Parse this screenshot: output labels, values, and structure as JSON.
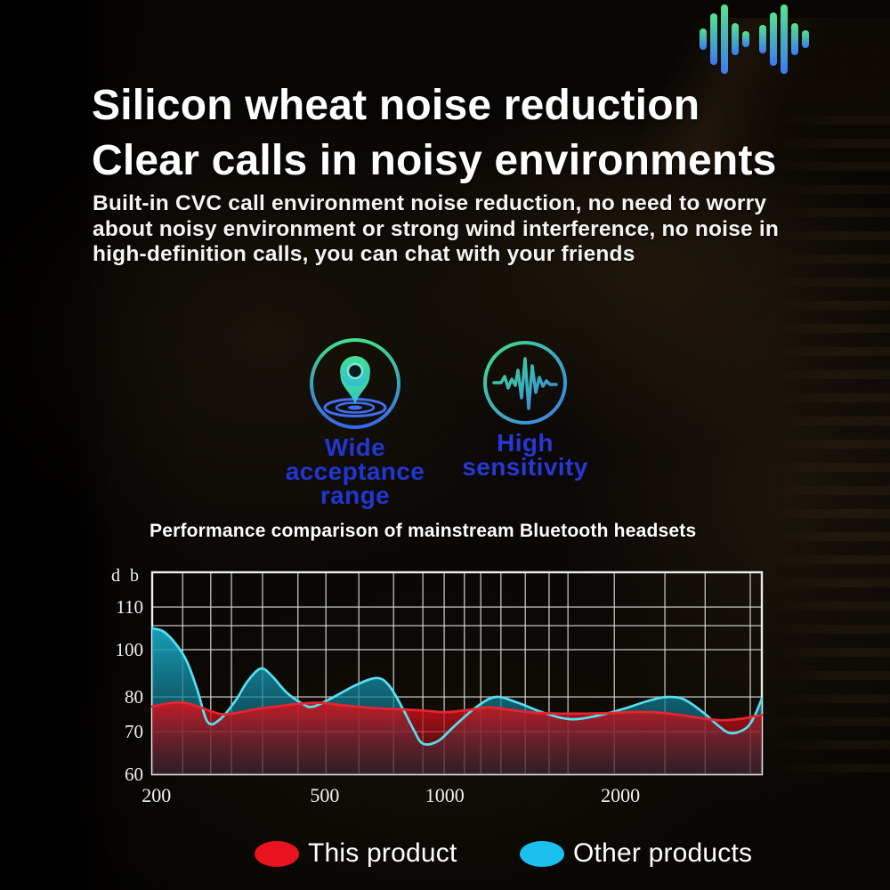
{
  "palette": {
    "heading_color": "#ffffff",
    "feature_label_blue": "#2136d2",
    "icon_gradient": [
      "#3fe08a",
      "#3a66ee"
    ],
    "waveform_gradient": [
      "#54e58d",
      "#3b79f2"
    ]
  },
  "header": {
    "waveform_icon": "audio-waveform-icon",
    "title_lines": [
      "Silicon wheat noise reduction",
      "Clear calls in noisy environments"
    ],
    "description_lines": [
      "Built-in CVC call environment noise reduction, no need to worry",
      "about noisy environment or strong wind interference, no noise in",
      "high-definition calls, you can chat with your friends"
    ]
  },
  "features": [
    {
      "icon": "location-pin-icon",
      "label": "Wide acceptance range",
      "label_color": "#2136d2"
    },
    {
      "icon": "pulse-wave-icon",
      "label": "High sensitivity",
      "label_color": "#2638d6"
    }
  ],
  "chart": {
    "title": "Performance comparison of mainstream Bluetooth headsets"
  },
  "chart_data": {
    "type": "area",
    "title": "Performance comparison of mainstream Bluetooth headsets",
    "y_unit_label": "d b",
    "ylim": [
      60,
      115
    ],
    "x_axis_scale": "pseudo-log frequency (Hz)",
    "grid_on": true,
    "legend_position": "bottom",
    "y_ticks": [
      {
        "label": "110",
        "v": 110
      },
      {
        "label": "100",
        "v": 100
      },
      {
        "label": "80",
        "v": 80
      },
      {
        "label": "70",
        "v": 70
      },
      {
        "label": "60",
        "v": 60
      }
    ],
    "y_scale_anchors": [
      [
        110,
        0.172
      ],
      [
        100,
        0.383
      ],
      [
        80,
        0.617
      ],
      [
        70,
        0.789
      ],
      [
        60,
        1.0
      ]
    ],
    "x_ticks": [
      {
        "label": "200",
        "f": 0.007
      },
      {
        "label": "500",
        "f": 0.283
      },
      {
        "label": "1000",
        "f": 0.48
      },
      {
        "label": "2000",
        "f": 0.768
      }
    ],
    "grid": {
      "h_fracs": [
        0.172,
        0.264,
        0.383,
        0.617,
        0.789
      ],
      "v_fracs": [
        0.05,
        0.096,
        0.13,
        0.181,
        0.239,
        0.285,
        0.339,
        0.396,
        0.444,
        0.479,
        0.512,
        0.539,
        0.572,
        0.612,
        0.651,
        0.682,
        0.758,
        0.841,
        0.907,
        0.981
      ]
    },
    "series": [
      {
        "name": "Other products",
        "stroke": "#55e0f2",
        "fill_top": "rgba(24,168,194,0.95)",
        "fill_bottom": "rgba(8,80,100,0.50)",
        "points_unit": "[x_fraction, dB]",
        "points": [
          [
            0,
            105
          ],
          [
            0.018,
            104.3
          ],
          [
            0.038,
            101.5
          ],
          [
            0.057,
            95
          ],
          [
            0.074,
            83
          ],
          [
            0.091,
            72.8
          ],
          [
            0.111,
            73.5
          ],
          [
            0.137,
            79
          ],
          [
            0.156,
            86.5
          ],
          [
            0.178,
            92
          ],
          [
            0.196,
            89
          ],
          [
            0.22,
            82
          ],
          [
            0.247,
            78
          ],
          [
            0.264,
            77.2
          ],
          [
            0.298,
            80
          ],
          [
            0.334,
            85
          ],
          [
            0.368,
            88
          ],
          [
            0.388,
            85
          ],
          [
            0.41,
            77
          ],
          [
            0.429,
            70.5
          ],
          [
            0.444,
            67.2
          ],
          [
            0.469,
            67.8
          ],
          [
            0.495,
            71.5
          ],
          [
            0.531,
            77
          ],
          [
            0.563,
            80
          ],
          [
            0.597,
            78.5
          ],
          [
            0.641,
            75.5
          ],
          [
            0.685,
            73.6
          ],
          [
            0.728,
            74.5
          ],
          [
            0.772,
            76.5
          ],
          [
            0.816,
            79
          ],
          [
            0.845,
            80
          ],
          [
            0.872,
            79.3
          ],
          [
            0.904,
            75.5
          ],
          [
            0.93,
            71.5
          ],
          [
            0.95,
            69.6
          ],
          [
            0.974,
            71
          ],
          [
            0.988,
            74.5
          ],
          [
            1,
            79.5
          ]
        ]
      },
      {
        "name": "This product",
        "stroke": "#e62531",
        "fill_top": "rgba(220,18,28,0.88)",
        "fill_bottom": "rgba(96,8,16,0.42)",
        "points_unit": "[x_fraction, dB]",
        "points": [
          [
            0,
            77.2
          ],
          [
            0.028,
            78.2
          ],
          [
            0.05,
            78.4
          ],
          [
            0.074,
            77.3
          ],
          [
            0.098,
            75.8
          ],
          [
            0.118,
            75
          ],
          [
            0.145,
            75.6
          ],
          [
            0.174,
            76.6
          ],
          [
            0.203,
            77.2
          ],
          [
            0.239,
            78
          ],
          [
            0.276,
            78.3
          ],
          [
            0.312,
            77.6
          ],
          [
            0.349,
            77
          ],
          [
            0.385,
            76.6
          ],
          [
            0.422,
            76.3
          ],
          [
            0.451,
            76
          ],
          [
            0.48,
            75.6
          ],
          [
            0.517,
            76.2
          ],
          [
            0.553,
            77
          ],
          [
            0.59,
            76.2
          ],
          [
            0.626,
            75.5
          ],
          [
            0.67,
            75.2
          ],
          [
            0.714,
            75.2
          ],
          [
            0.758,
            75.4
          ],
          [
            0.794,
            75.7
          ],
          [
            0.831,
            75.5
          ],
          [
            0.867,
            74.8
          ],
          [
            0.904,
            73.8
          ],
          [
            0.933,
            73.3
          ],
          [
            0.962,
            73.6
          ],
          [
            0.984,
            74.3
          ],
          [
            1,
            74.8
          ]
        ]
      }
    ]
  },
  "legend": {
    "items": [
      {
        "label": "This product",
        "color": "#e8131e"
      },
      {
        "label": "Other products",
        "color": "#1cc0ec"
      }
    ]
  }
}
